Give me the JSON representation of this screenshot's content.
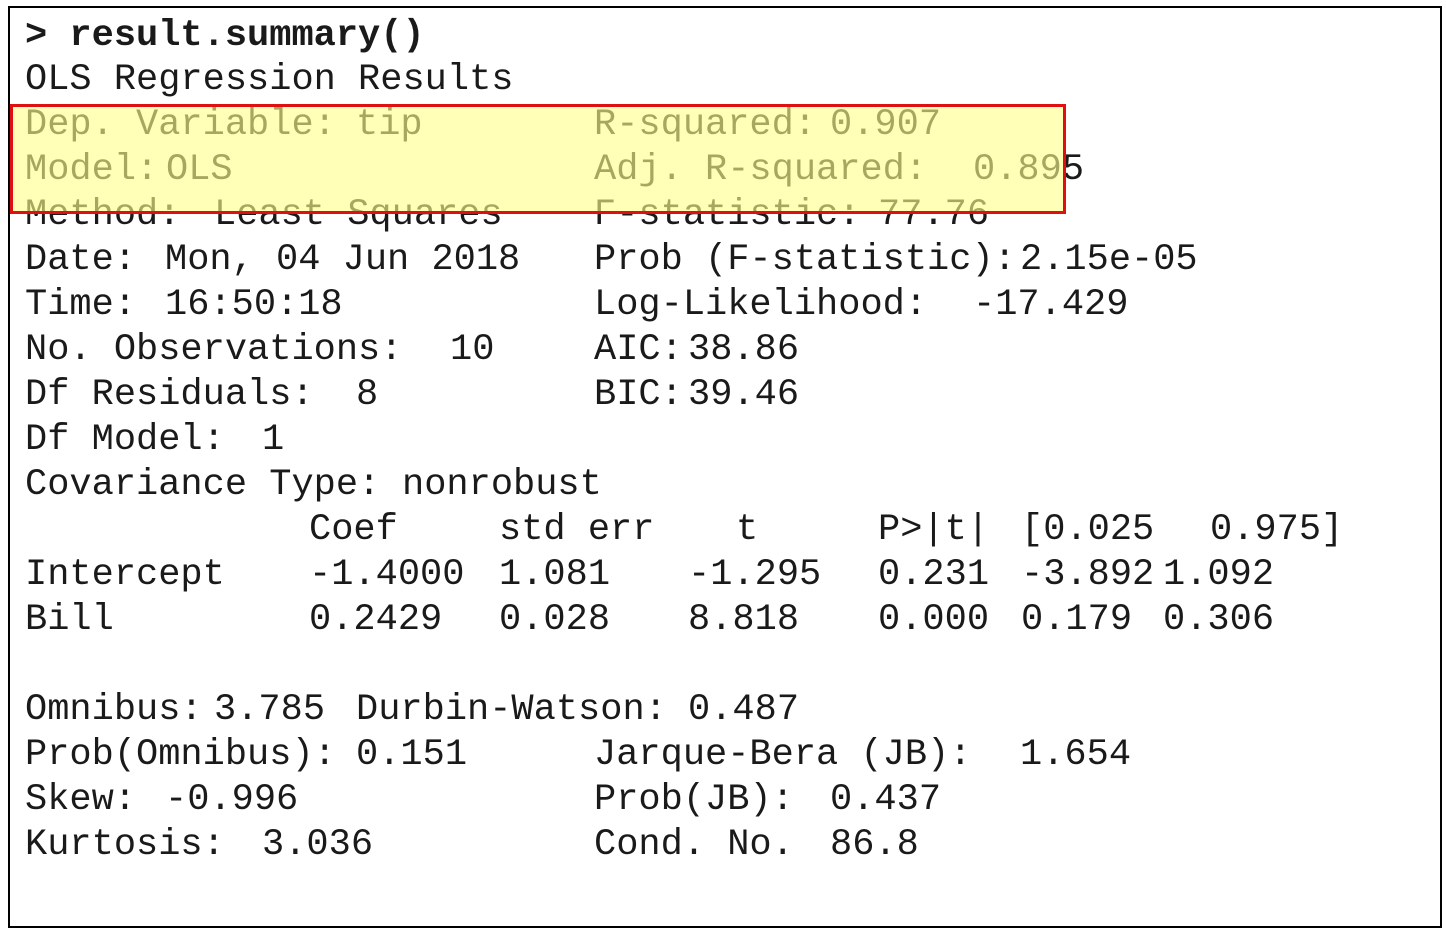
{
  "command": "> result.summary()",
  "title": "OLS Regression Results",
  "summary": {
    "left": [
      {
        "label": "Dep. Variable:",
        "value": "tip"
      },
      {
        "label": "Model:",
        "value": "OLS"
      },
      {
        "label": "Method:",
        "value": "Least Squares"
      },
      {
        "label": "Date:",
        "value": "Mon, 04 Jun 2018"
      },
      {
        "label": "Time:",
        "value": "16:50:18"
      },
      {
        "label": "No. Observations:",
        "value": "10"
      },
      {
        "label": "Df Residuals:",
        "value": "8"
      },
      {
        "label": "Df Model:",
        "value": "1"
      },
      {
        "label": "Covariance Type:",
        "value": "nonrobust"
      }
    ],
    "right": [
      {
        "label": "R-squared:",
        "value": "0.907"
      },
      {
        "label": "Adj. R-squared:",
        "value": "0.895"
      },
      {
        "label": "F-statistic:",
        "value": "77.76"
      },
      {
        "label": "Prob (F-statistic):",
        "value": "2.15e-05"
      },
      {
        "label": "Log-Likelihood:",
        "value": "-17.429"
      },
      {
        "label": "AIC:",
        "value": "38.86"
      },
      {
        "label": "BIC:",
        "value": "39.46"
      }
    ]
  },
  "coef_table": {
    "columns": [
      "Coef",
      "std err",
      "t",
      "P>|t|",
      "[0.025",
      "0.975]"
    ],
    "rows": [
      {
        "name": "Intercept",
        "values": [
          "-1.4000",
          "1.081",
          "-1.295",
          "0.231",
          "-3.892",
          "1.092"
        ]
      },
      {
        "name": "Bill",
        "values": [
          "0.2429",
          "0.028",
          "8.818",
          "0.000",
          "0.179",
          "0.306"
        ]
      }
    ]
  },
  "diagnostics": [
    [
      {
        "label": "Omnibus:",
        "value": "3.785"
      },
      {
        "label": "Durbin-Watson:",
        "value": "0.487"
      }
    ],
    [
      {
        "label": "Prob(Omnibus):",
        "value": "0.151"
      },
      {
        "label": "Jarque-Bera (JB):",
        "value": "1.654"
      }
    ],
    [
      {
        "label": "Skew:",
        "value": "-0.996"
      },
      {
        "label": "Prob(JB):",
        "value": "0.437"
      }
    ],
    [
      {
        "label": "Kurtosis:",
        "value": "3.036"
      },
      {
        "label": "Cond. No.",
        "value": "86.8"
      }
    ]
  ]
}
